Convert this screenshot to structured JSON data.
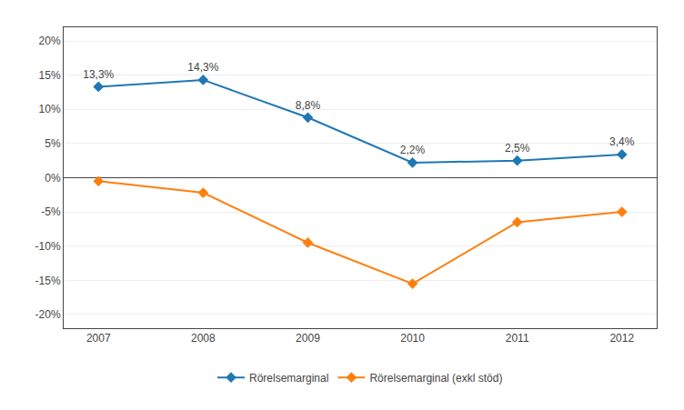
{
  "chart_data": {
    "type": "line",
    "categories": [
      "2007",
      "2008",
      "2009",
      "2010",
      "2011",
      "2012"
    ],
    "series": [
      {
        "name": "Rörelsemarginal",
        "values": [
          0.133,
          0.143,
          0.088,
          0.022,
          0.025,
          0.034
        ],
        "value_labels": [
          "13,3%",
          "14,3%",
          "8,8%",
          "2,2%",
          "2,5%",
          "3,4%"
        ],
        "data_labels": true,
        "marker": "diamond"
      },
      {
        "name": "Rörelsemarginal (exkl stöd)",
        "values": [
          -0.005,
          -0.022,
          -0.095,
          -0.155,
          -0.065,
          -0.05
        ],
        "marker": "diamond"
      }
    ],
    "ylim": [
      -0.22,
      0.22
    ],
    "yticks": [
      {
        "value": -0.2,
        "label": "-20%"
      },
      {
        "value": -0.15,
        "label": "-15%"
      },
      {
        "value": -0.1,
        "label": "-10%"
      },
      {
        "value": -0.05,
        "label": "-5%"
      },
      {
        "value": 0,
        "label": "0%"
      },
      {
        "value": 0.05,
        "label": "5%"
      },
      {
        "value": 0.1,
        "label": "10%"
      },
      {
        "value": 0.15,
        "label": "15%"
      },
      {
        "value": 0.2,
        "label": "20%"
      }
    ],
    "grid": true,
    "legend": "bottom"
  }
}
